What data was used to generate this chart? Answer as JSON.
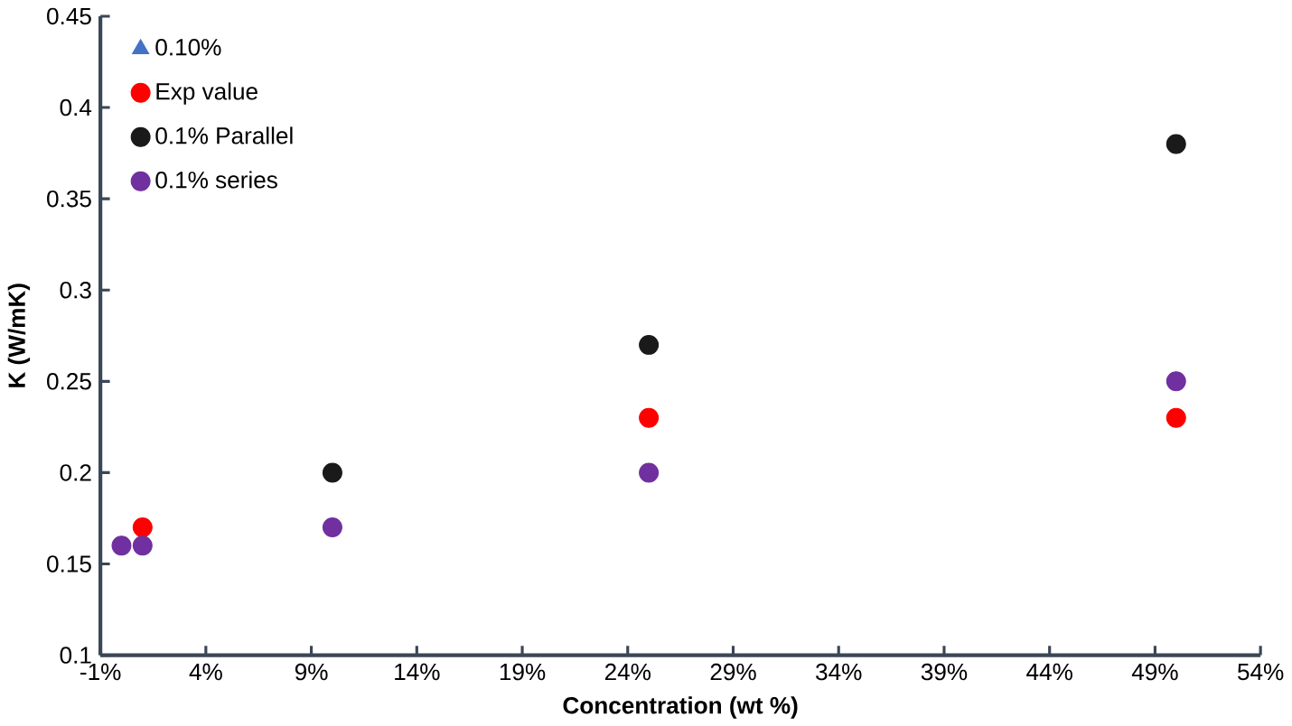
{
  "chart_data": {
    "type": "scatter",
    "xlabel": "Concentration  (wt %)",
    "ylabel": "K (W/mK)",
    "x": [
      0,
      1,
      10,
      25,
      50
    ],
    "series": [
      {
        "name": "0.10%",
        "color": "#4472c4",
        "marker": "triangle",
        "values": [
          null,
          null,
          null,
          null,
          null
        ]
      },
      {
        "name": "Exp value",
        "color": "#ff0000",
        "marker": "circle",
        "values": [
          null,
          0.17,
          null,
          0.23,
          0.23
        ]
      },
      {
        "name": "0.1% Parallel",
        "color": "#1a1a1a",
        "marker": "circle",
        "values": [
          null,
          null,
          0.2,
          0.27,
          0.38
        ]
      },
      {
        "name": "0.1% series",
        "color": "#7030a0",
        "marker": "circle",
        "values": [
          0.16,
          0.16,
          0.17,
          0.2,
          0.25
        ]
      }
    ],
    "xlim": [
      -1,
      54
    ],
    "xticks": [
      {
        "value": -1,
        "label": "-1%"
      },
      {
        "value": 4,
        "label": "4%"
      },
      {
        "value": 9,
        "label": "9%"
      },
      {
        "value": 14,
        "label": "14%"
      },
      {
        "value": 19,
        "label": "19%"
      },
      {
        "value": 24,
        "label": "24%"
      },
      {
        "value": 29,
        "label": "29%"
      },
      {
        "value": 34,
        "label": "34%"
      },
      {
        "value": 39,
        "label": "39%"
      },
      {
        "value": 44,
        "label": "44%"
      },
      {
        "value": 49,
        "label": "49%"
      },
      {
        "value": 54,
        "label": "54%"
      }
    ],
    "ylim": [
      0.1,
      0.45
    ],
    "yticks": [
      0.1,
      0.15,
      0.2,
      0.25,
      0.3,
      0.35,
      0.4,
      0.45
    ],
    "grid": false,
    "legend": "top left"
  }
}
